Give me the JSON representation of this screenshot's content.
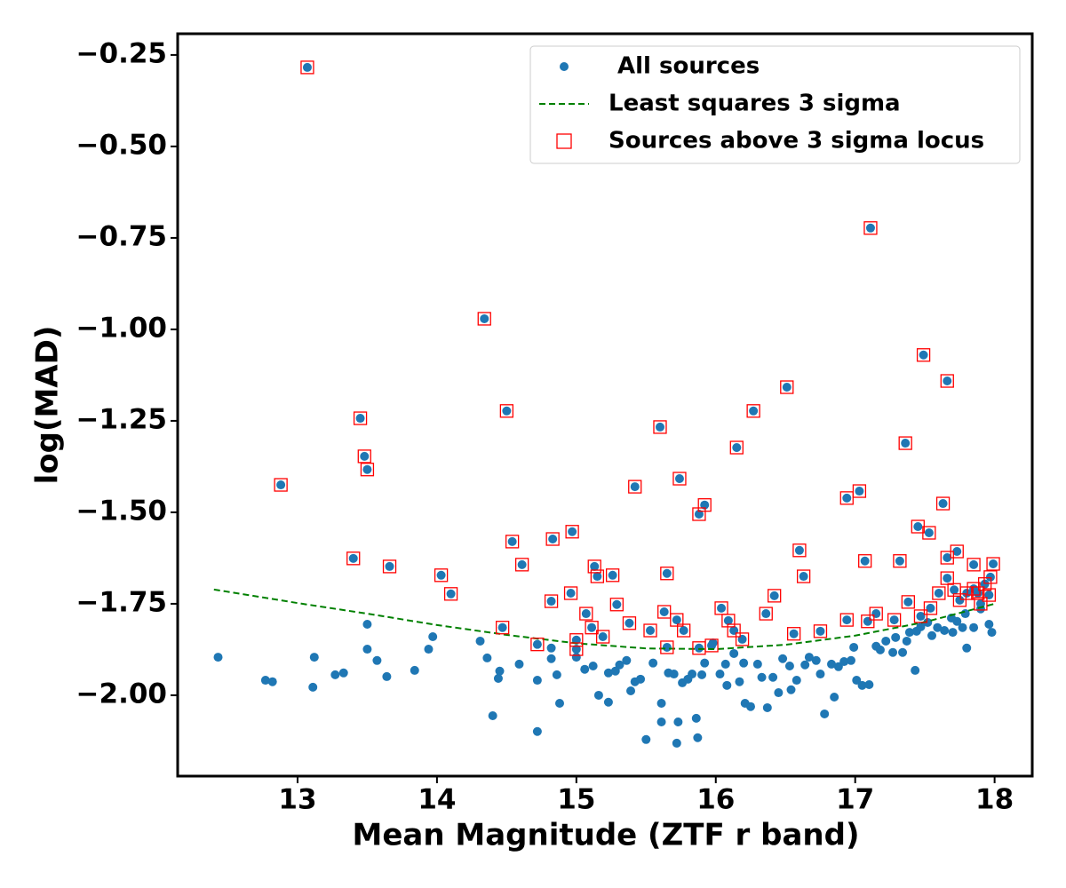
{
  "chart_data": {
    "type": "scatter",
    "xlabel": "Mean Magnitude (ZTF r band)",
    "ylabel": "log(MAD)",
    "xlim": [
      12.14,
      18.27
    ],
    "ylim": [
      -2.221,
      -0.192
    ],
    "xticks": [
      13,
      14,
      15,
      16,
      17,
      18
    ],
    "yticks": [
      {
        "value": -0.25,
        "label": "−0.25"
      },
      {
        "value": -0.5,
        "label": "−0.50"
      },
      {
        "value": -0.75,
        "label": "−0.75"
      },
      {
        "value": -1.0,
        "label": "−1.00"
      },
      {
        "value": -1.25,
        "label": "−1.25"
      },
      {
        "value": -1.5,
        "label": "−1.50"
      },
      {
        "value": -1.75,
        "label": "−1.75"
      },
      {
        "value": -2.0,
        "label": "−2.00"
      }
    ],
    "legend": "upper right",
    "series": [
      {
        "name": "All sources",
        "color": "#1f77b4",
        "marker": "circle",
        "x": [
          12.43,
          12.77,
          12.82,
          13.12,
          13.11,
          13.27,
          13.33,
          13.5,
          13.5,
          13.57,
          13.64,
          13.84,
          13.94,
          13.97,
          14.31,
          14.36,
          14.4,
          14.44,
          14.45,
          14.59,
          14.72,
          14.72,
          14.82,
          14.82,
          14.86,
          14.88,
          15.0,
          15.06,
          15.12,
          15.16,
          15.23,
          15.23,
          15.28,
          15.31,
          15.36,
          15.39,
          15.42,
          15.46,
          15.5,
          15.55,
          15.61,
          15.61,
          15.66,
          15.7,
          15.73,
          15.72,
          15.76,
          15.8,
          15.83,
          15.86,
          15.87,
          15.9,
          15.92,
          15.98,
          16.03,
          16.07,
          16.08,
          16.13,
          16.17,
          16.2,
          16.21,
          16.25,
          16.3,
          16.33,
          16.37,
          16.41,
          16.45,
          16.48,
          16.53,
          16.54,
          16.58,
          16.64,
          16.67,
          16.72,
          16.75,
          16.78,
          16.83,
          16.85,
          16.88,
          16.92,
          16.97,
          16.99,
          17.01,
          17.05,
          17.1,
          17.15,
          17.18,
          17.22,
          17.27,
          17.29,
          17.34,
          17.37,
          17.39,
          17.44,
          17.47,
          17.52,
          17.55,
          17.59,
          17.64,
          17.69,
          17.7,
          17.73,
          17.77,
          17.79,
          17.8,
          17.85,
          17.9,
          17.96,
          17.98,
          17.43,
          13.07,
          17.11,
          14.34,
          16.51,
          13.45,
          14.5,
          15.6,
          16.15,
          16.27,
          17.66,
          17.49,
          17.36,
          13.48,
          13.5,
          12.88,
          15.74,
          15.42,
          15.92,
          15.88,
          16.94,
          17.03,
          17.63,
          17.45,
          17.53,
          14.54,
          14.83,
          14.97,
          13.4,
          14.61,
          13.66,
          14.03,
          15.13,
          15.26,
          15.15,
          15.65,
          16.6,
          16.63,
          17.07,
          17.32,
          17.66,
          17.73,
          17.85,
          17.99,
          14.1,
          14.96,
          14.82,
          15.29,
          15.07,
          16.42,
          16.04,
          14.47,
          15.11,
          15.19,
          15.38,
          15.53,
          15.63,
          15.72,
          15.77,
          16.09,
          16.13,
          16.36,
          16.56,
          16.75,
          16.94,
          17.09,
          17.15,
          17.28,
          17.38,
          17.47,
          17.54,
          17.6,
          17.66,
          17.71,
          17.75,
          17.8,
          17.85,
          17.93,
          17.97,
          17.96,
          14.72,
          15.0,
          15.0,
          15.65,
          15.88,
          15.97,
          16.19,
          17.88,
          17.9
        ],
        "values": [
          -1.896,
          -1.959,
          -1.963,
          -1.896,
          -1.978,
          -1.944,
          -1.939,
          -1.806,
          -1.874,
          -1.905,
          -1.949,
          -1.932,
          -1.874,
          -1.84,
          -1.852,
          -1.898,
          -2.056,
          -1.954,
          -1.934,
          -1.915,
          -1.959,
          -2.099,
          -1.9,
          -1.871,
          -1.944,
          -2.022,
          -1.896,
          -1.929,
          -1.92,
          -2.0,
          -1.939,
          -2.019,
          -1.934,
          -1.917,
          -1.905,
          -1.988,
          -1.963,
          -1.956,
          -2.121,
          -1.912,
          -2.022,
          -2.073,
          -1.939,
          -1.942,
          -2.073,
          -2.131,
          -1.966,
          -1.956,
          -1.942,
          -2.063,
          -2.116,
          -1.944,
          -1.912,
          -1.857,
          -1.942,
          -1.915,
          -1.973,
          -1.886,
          -1.963,
          -1.912,
          -2.022,
          -2.031,
          -1.915,
          -1.951,
          -2.034,
          -1.951,
          -1.993,
          -1.9,
          -1.92,
          -1.985,
          -1.959,
          -1.917,
          -1.896,
          -1.905,
          -1.942,
          -2.051,
          -1.915,
          -2.005,
          -1.922,
          -1.908,
          -1.905,
          -1.869,
          -1.959,
          -1.973,
          -1.971,
          -1.866,
          -1.876,
          -1.852,
          -1.883,
          -1.842,
          -1.883,
          -1.852,
          -1.828,
          -1.825,
          -1.813,
          -1.801,
          -1.837,
          -1.815,
          -1.823,
          -1.789,
          -1.828,
          -1.798,
          -1.815,
          -1.777,
          -1.871,
          -1.815,
          -1.764,
          -1.806,
          -1.828,
          -1.932,
          -0.284,
          -0.723,
          -0.971,
          -1.158,
          -1.243,
          -1.223,
          -1.267,
          -1.323,
          -1.223,
          -1.141,
          -1.07,
          -1.311,
          -1.347,
          -1.383,
          -1.425,
          -1.408,
          -1.43,
          -1.48,
          -1.505,
          -1.461,
          -1.442,
          -1.476,
          -1.539,
          -1.556,
          -1.58,
          -1.573,
          -1.553,
          -1.626,
          -1.643,
          -1.648,
          -1.672,
          -1.648,
          -1.672,
          -1.675,
          -1.667,
          -1.604,
          -1.675,
          -1.633,
          -1.633,
          -1.624,
          -1.607,
          -1.643,
          -1.641,
          -1.723,
          -1.721,
          -1.743,
          -1.752,
          -1.777,
          -1.728,
          -1.762,
          -1.815,
          -1.815,
          -1.84,
          -1.803,
          -1.823,
          -1.772,
          -1.794,
          -1.823,
          -1.796,
          -1.823,
          -1.777,
          -1.832,
          -1.825,
          -1.794,
          -1.798,
          -1.777,
          -1.794,
          -1.745,
          -1.784,
          -1.762,
          -1.721,
          -1.68,
          -1.712,
          -1.74,
          -1.721,
          -1.709,
          -1.696,
          -1.677,
          -1.726,
          -1.861,
          -1.849,
          -1.874,
          -1.869,
          -1.871,
          -1.864,
          -1.847,
          -1.721,
          -1.75
        ]
      },
      {
        "name": "Least squares 3 sigma",
        "color": "#008000",
        "linestyle": "dashed",
        "x": [
          12.4,
          13,
          13.5,
          14,
          14.5,
          15,
          15.5,
          16,
          16.5,
          17,
          17.5,
          18
        ],
        "values": [
          -1.711,
          -1.748,
          -1.777,
          -1.808,
          -1.835,
          -1.858,
          -1.872,
          -1.874,
          -1.862,
          -1.837,
          -1.8,
          -1.75
        ]
      },
      {
        "name": "Sources above 3 sigma locus",
        "color": "#ff0000",
        "marker": "square",
        "x": [
          13.07,
          17.11,
          14.34,
          16.51,
          13.45,
          14.5,
          15.6,
          16.15,
          16.27,
          17.66,
          17.49,
          17.36,
          13.48,
          13.5,
          12.88,
          15.74,
          15.42,
          15.92,
          15.88,
          16.94,
          17.03,
          17.63,
          17.45,
          17.53,
          14.54,
          14.83,
          14.97,
          13.4,
          14.61,
          13.66,
          14.03,
          15.13,
          15.26,
          15.15,
          15.65,
          16.6,
          16.63,
          17.07,
          17.32,
          17.66,
          17.73,
          17.85,
          17.99,
          14.1,
          14.96,
          14.82,
          15.29,
          15.07,
          16.42,
          16.04,
          14.47,
          15.11,
          15.19,
          15.38,
          15.53,
          15.63,
          15.72,
          15.77,
          16.09,
          16.13,
          16.36,
          16.56,
          16.75,
          16.94,
          17.09,
          17.15,
          17.28,
          17.38,
          17.47,
          17.54,
          17.6,
          17.66,
          17.71,
          17.75,
          17.8,
          17.85,
          17.93,
          17.97,
          17.96,
          14.72,
          15.0,
          15.0,
          15.65,
          15.88,
          15.97,
          16.19,
          17.88,
          17.9
        ],
        "values": [
          -0.284,
          -0.723,
          -0.971,
          -1.158,
          -1.243,
          -1.223,
          -1.267,
          -1.323,
          -1.223,
          -1.141,
          -1.07,
          -1.311,
          -1.347,
          -1.383,
          -1.425,
          -1.408,
          -1.43,
          -1.48,
          -1.505,
          -1.461,
          -1.442,
          -1.476,
          -1.539,
          -1.556,
          -1.58,
          -1.573,
          -1.553,
          -1.626,
          -1.643,
          -1.648,
          -1.672,
          -1.648,
          -1.672,
          -1.675,
          -1.667,
          -1.604,
          -1.675,
          -1.633,
          -1.633,
          -1.624,
          -1.607,
          -1.643,
          -1.641,
          -1.723,
          -1.721,
          -1.743,
          -1.752,
          -1.777,
          -1.728,
          -1.762,
          -1.815,
          -1.815,
          -1.84,
          -1.803,
          -1.823,
          -1.772,
          -1.794,
          -1.823,
          -1.796,
          -1.823,
          -1.777,
          -1.832,
          -1.825,
          -1.794,
          -1.798,
          -1.777,
          -1.794,
          -1.745,
          -1.784,
          -1.762,
          -1.721,
          -1.68,
          -1.712,
          -1.74,
          -1.721,
          -1.709,
          -1.696,
          -1.677,
          -1.726,
          -1.861,
          -1.849,
          -1.874,
          -1.869,
          -1.871,
          -1.864,
          -1.847,
          -1.721,
          -1.75
        ]
      }
    ]
  }
}
